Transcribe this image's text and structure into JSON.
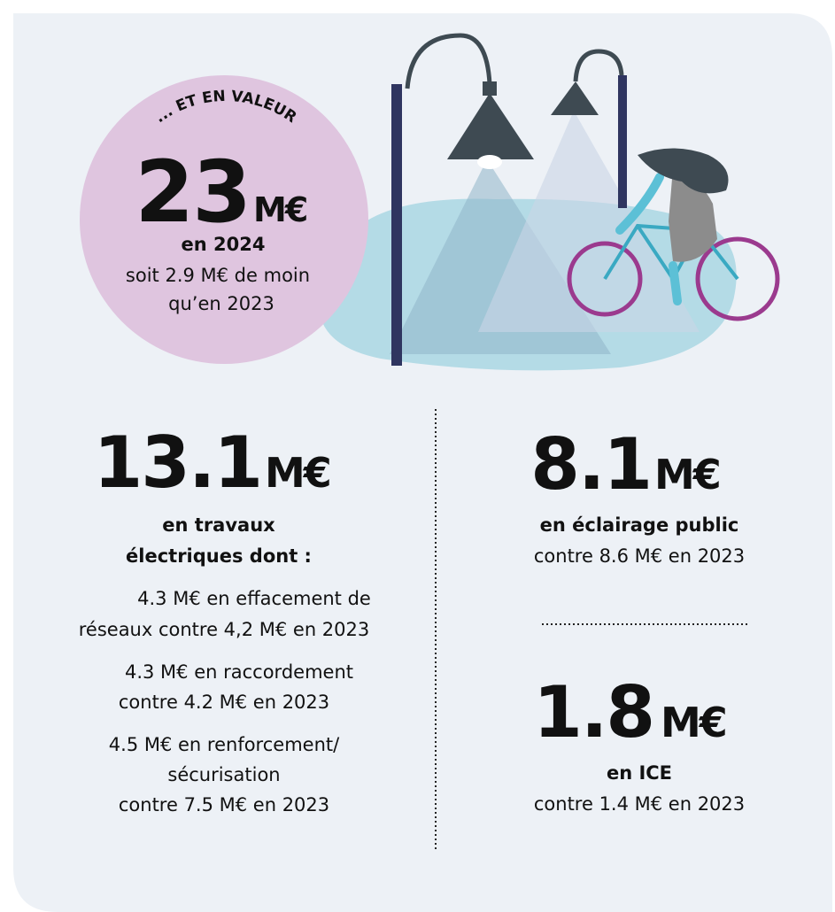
{
  "header": {
    "kicker": "... ET EN VALEUR",
    "amount": "23",
    "unit": "M€",
    "year": "en 2024",
    "note_lines": [
      "soit 2.9 M€ de moin",
      "qu’en 2023"
    ]
  },
  "left": {
    "amount": "13.1",
    "unit": "M€",
    "title_lines": [
      "en travaux",
      "électriques dont :"
    ],
    "details": [
      "4.3 M€ en effacement de",
      "réseaux contre 4,2 M€ en 2023",
      "4.3 M€ en raccordement",
      "contre 4.2 M€ en 2023",
      "4.5 M€ en renforcement/",
      "sécurisation",
      "contre 7.5 M€ en 2023"
    ]
  },
  "right": [
    {
      "amount": "8.1",
      "unit": "M€",
      "title": "en éclairage public",
      "comparison": "contre 8.6 M€ en 2023"
    },
    {
      "amount": "1.8",
      "unit": "M€",
      "title": "en ICE",
      "comparison": "contre 1.4 M€ en 2023"
    }
  ]
}
